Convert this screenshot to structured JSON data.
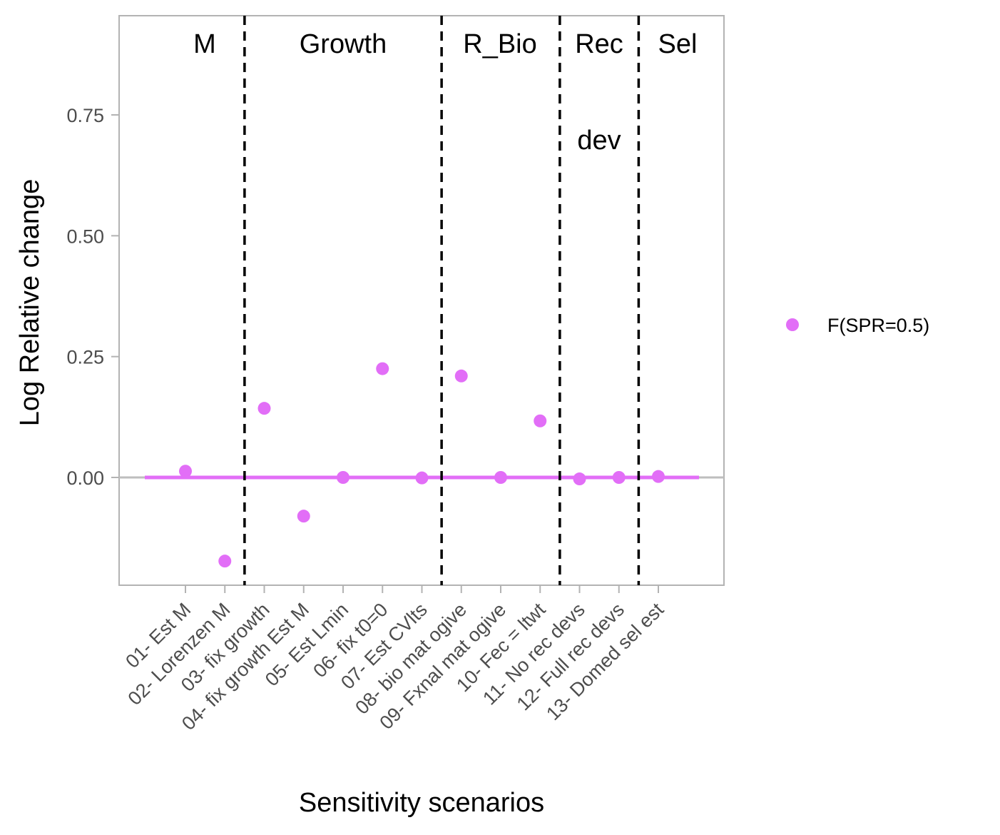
{
  "chart_data": {
    "type": "scatter",
    "xlabel": "Sensitivity scenarios",
    "ylabel": "Log Relative change",
    "ylim": [
      -0.22,
      0.95
    ],
    "yticks": [
      0.0,
      0.25,
      0.5,
      0.75
    ],
    "ytick_labels": [
      "0.00",
      "0.25",
      "0.50",
      "0.75"
    ],
    "grid": false,
    "categories": [
      "01- Est M",
      "02- Lorenzen M",
      "03- fix growth",
      "04- fix growth Est M",
      "05- Est Lmin",
      "06- fix t0=0",
      "07- Est CVlts",
      "08- bio mat ogive",
      "09- Fxnal mat ogive",
      "10- Fec = ltwt",
      "11- No rec devs",
      "12- Full rec devs",
      "13- Domed sel est"
    ],
    "series": [
      {
        "name": "F(SPR=0.5)",
        "color": "#e26ef7",
        "values": [
          0.013,
          -0.173,
          0.143,
          -0.08,
          0.0,
          0.225,
          -0.001,
          0.21,
          0.0,
          0.117,
          -0.003,
          0.0,
          0.002
        ]
      }
    ],
    "reference_line": {
      "y": 0.0,
      "color": "#bebebe"
    },
    "series_line": {
      "y": 0.0,
      "color": "#e26ef7",
      "from_category": 1,
      "to_category": 13
    },
    "group_dividers_after_category": [
      2,
      7,
      10,
      12
    ],
    "groups": [
      {
        "lines": [
          "M"
        ],
        "from_category": 1,
        "to_category": 2
      },
      {
        "lines": [
          "Growth"
        ],
        "from_category": 3,
        "to_category": 7
      },
      {
        "lines": [
          "R_Bio"
        ],
        "from_category": 8,
        "to_category": 10
      },
      {
        "lines": [
          "Rec",
          "dev"
        ],
        "from_category": 11,
        "to_category": 12
      },
      {
        "lines": [
          "Sel"
        ],
        "from_category": 13,
        "to_category": 13
      }
    ],
    "legend": {
      "position": "right"
    }
  }
}
